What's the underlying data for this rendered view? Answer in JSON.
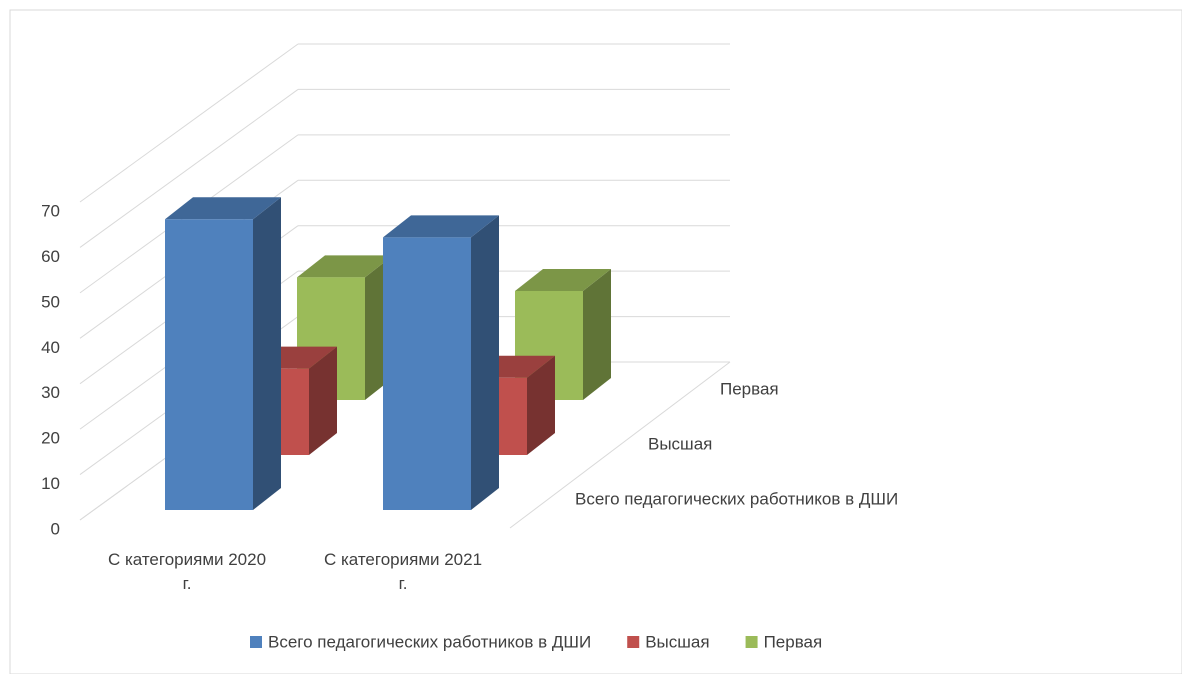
{
  "chart_data": {
    "type": "bar3d",
    "categories": [
      "С категориями 2020 г.",
      "С категориями 2021 г."
    ],
    "series": [
      {
        "name": "Всего педагогических работников в ДШИ",
        "color": "#4f81bd",
        "values": [
          64,
          60
        ]
      },
      {
        "name": "Высшая",
        "color": "#c0504d",
        "values": [
          19,
          17
        ]
      },
      {
        "name": "Первая",
        "color": "#9bbb59",
        "values": [
          27,
          24
        ]
      }
    ],
    "ylim": [
      0,
      70
    ],
    "yticks": [
      0,
      10,
      20,
      30,
      40,
      50,
      60,
      70
    ],
    "grid": true,
    "legend": "bottom"
  }
}
